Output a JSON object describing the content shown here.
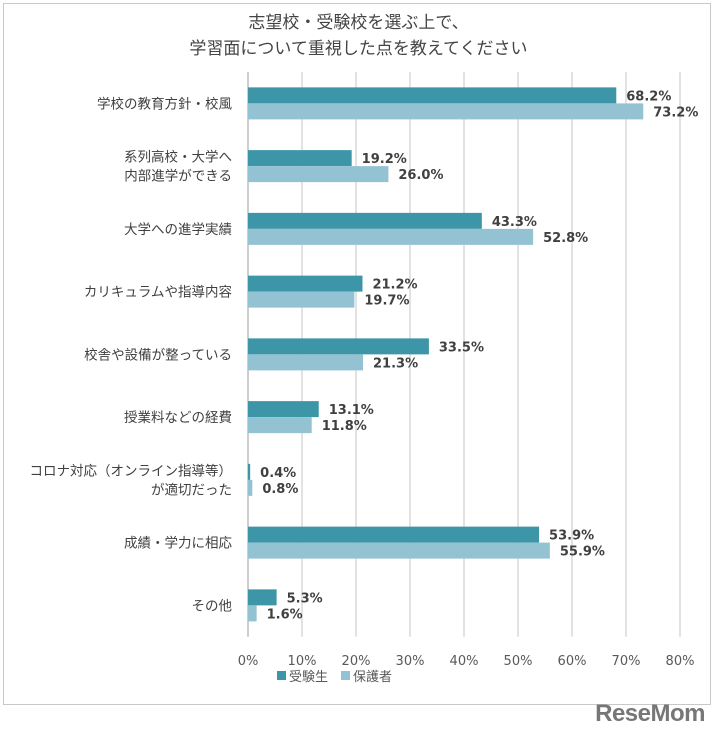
{
  "chart_data": {
    "type": "bar",
    "orientation": "horizontal",
    "title_lines": [
      "志望校・受験校を選ぶ上で、",
      "学習面について重視した点を教えてください"
    ],
    "categories": [
      [
        "学校の教育方針・校風"
      ],
      [
        "系列高校・大学へ",
        "内部進学ができる"
      ],
      [
        "大学への進学実績"
      ],
      [
        "カリキュラムや指導内容"
      ],
      [
        "校舎や設備が整っている"
      ],
      [
        "授業料などの経費"
      ],
      [
        "コロナ対応（オンライン指導等）",
        "が適切だった"
      ],
      [
        "成績・学力に相応"
      ],
      [
        "その他"
      ]
    ],
    "series": [
      {
        "name": "受験生",
        "color": "#3d95a8",
        "values": [
          68.2,
          19.2,
          43.3,
          21.2,
          33.5,
          13.1,
          0.4,
          53.9,
          5.3
        ]
      },
      {
        "name": "保護者",
        "color": "#93c3d3",
        "values": [
          73.2,
          26.0,
          52.8,
          19.7,
          21.3,
          11.8,
          0.8,
          55.9,
          1.6
        ]
      }
    ],
    "xlim": [
      0,
      80
    ],
    "xticks": [
      "0%",
      "10%",
      "20%",
      "30%",
      "40%",
      "50%",
      "60%",
      "70%",
      "80%"
    ],
    "grid": true,
    "legend": "bottom"
  },
  "logo": "ReseMom"
}
